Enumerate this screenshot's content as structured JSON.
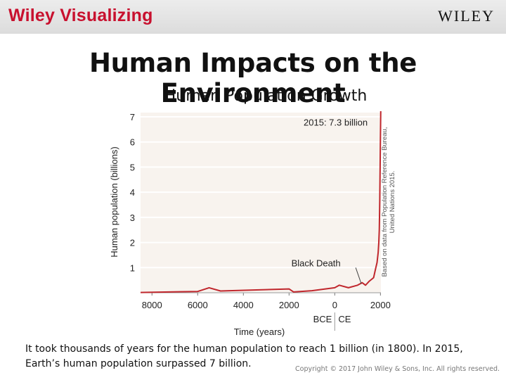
{
  "header": {
    "brand_left": "Wiley Visualizing",
    "brand_right": "WILEY"
  },
  "slide": {
    "title": "Human Impacts on the Environment",
    "subtitle": "Human Population Growth",
    "caption": "It took thousands of years for the human population to reach 1 billion (in 1800). In 2015, Earth’s human population surpassed 7 billion.",
    "copyright": "Copyright © 2017 John Wiley & Sons, Inc. All rights reserved."
  },
  "chart_data": {
    "type": "line",
    "xlabel": "Time (years)",
    "ylabel": "Human population (billions)",
    "x_era_labels": [
      "BCE",
      "CE"
    ],
    "xlim": [
      -8500,
      2020
    ],
    "ylim": [
      0,
      7
    ],
    "x_ticks": [
      -8000,
      -6000,
      -4000,
      -2000,
      0,
      2000
    ],
    "x_tick_labels": [
      "8000",
      "6000",
      "4000",
      "2000",
      "0",
      "2000"
    ],
    "y_ticks": [
      1,
      2,
      3,
      4,
      5,
      6,
      7
    ],
    "y_tick_labels": [
      "1",
      "2",
      "3",
      "4",
      "5",
      "6",
      "7"
    ],
    "grid": "horizontal",
    "series": [
      {
        "color": "#c0272d",
        "x": [
          -8500,
          -6000,
          -5500,
          -5000,
          -2000,
          -1800,
          -1000,
          0,
          200,
          600,
          1000,
          1200,
          1347,
          1400,
          1500,
          1700,
          1800,
          1850,
          1900,
          1927,
          1950,
          1960,
          1970,
          1975,
          1987,
          2000,
          2015
        ],
        "y": [
          0.01,
          0.05,
          0.2,
          0.07,
          0.15,
          0.03,
          0.08,
          0.2,
          0.3,
          0.2,
          0.3,
          0.4,
          0.3,
          0.35,
          0.45,
          0.6,
          1.0,
          1.2,
          1.6,
          2.0,
          2.5,
          3.0,
          3.7,
          4.0,
          5.0,
          6.1,
          7.3
        ]
      }
    ],
    "annotations": [
      {
        "text": "2015: 7.3 billion",
        "x": 1870,
        "y": 6.3
      },
      {
        "text": "Black Death",
        "x": 1347,
        "y": 0.3
      }
    ],
    "source_note": [
      "Based on data from Population Reference Bureau,",
      "United Nations 2015."
    ],
    "legend": "none"
  }
}
